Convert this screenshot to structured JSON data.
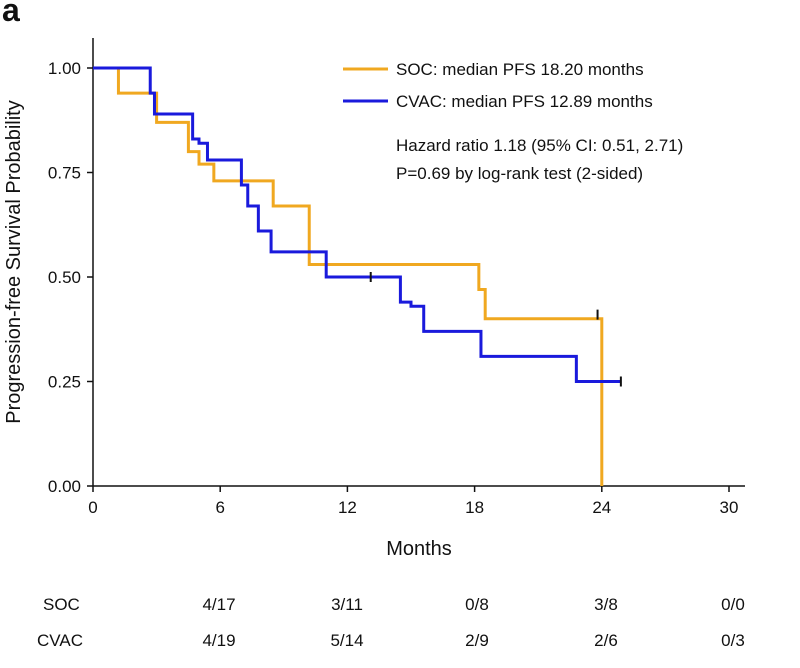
{
  "panel_label": "a",
  "chart_data": {
    "type": "line",
    "subtype": "kaplan-meier",
    "xlabel": "Months",
    "ylabel": "Progression-free Survival Probability",
    "xlim": [
      0,
      30
    ],
    "ylim": [
      0,
      1.0
    ],
    "xticks": [
      0,
      6,
      12,
      18,
      24,
      30
    ],
    "xtick_labels": [
      "0",
      "6",
      "12",
      "18",
      "24",
      "30"
    ],
    "yticks": [
      0,
      0.25,
      0.5,
      0.75,
      1.0
    ],
    "ytick_labels": [
      "0.00",
      "0.25",
      "0.50",
      "0.75",
      "1.00"
    ],
    "series": [
      {
        "name": "SOC",
        "legend": "SOC: median PFS 18.20 months",
        "color": "#f0a820",
        "x": [
          0,
          1.2,
          3.0,
          4.5,
          5.0,
          5.7,
          8.5,
          10.2,
          10.7,
          18.2,
          18.5,
          24.0,
          24.0
        ],
        "y": [
          1.0,
          0.94,
          0.87,
          0.8,
          0.77,
          0.73,
          0.67,
          0.53,
          0.53,
          0.47,
          0.4,
          0.4,
          0.0
        ],
        "censor": [
          {
            "x": 23.8,
            "y": 0.41
          }
        ]
      },
      {
        "name": "CVAC",
        "legend": "CVAC: median PFS 12.89 months",
        "color": "#1a1adc",
        "x": [
          0,
          2.7,
          2.9,
          4.7,
          5.0,
          5.4,
          7.0,
          7.3,
          7.8,
          8.4,
          11.0,
          14.5,
          15.0,
          15.6,
          18.3,
          22.8,
          24.9
        ],
        "y": [
          1.0,
          0.94,
          0.89,
          0.83,
          0.82,
          0.78,
          0.72,
          0.67,
          0.61,
          0.56,
          0.5,
          0.44,
          0.43,
          0.37,
          0.31,
          0.25,
          0.25
        ],
        "censor": [
          {
            "x": 13.1,
            "y": 0.5
          },
          {
            "x": 24.9,
            "y": 0.25
          }
        ]
      }
    ],
    "annotations": [
      "Hazard ratio 1.18 (95% CI: 0.51, 2.71)",
      "P=0.69 by log-rank test (2-sided)"
    ],
    "legend_position": "top-right",
    "risk_table": {
      "rows": [
        {
          "label": "SOC",
          "values": [
            "4/17",
            "3/11",
            "0/8",
            "3/8",
            "0/0"
          ]
        },
        {
          "label": "CVAC",
          "values": [
            "4/19",
            "5/14",
            "2/9",
            "2/6",
            "0/3"
          ]
        }
      ]
    }
  }
}
